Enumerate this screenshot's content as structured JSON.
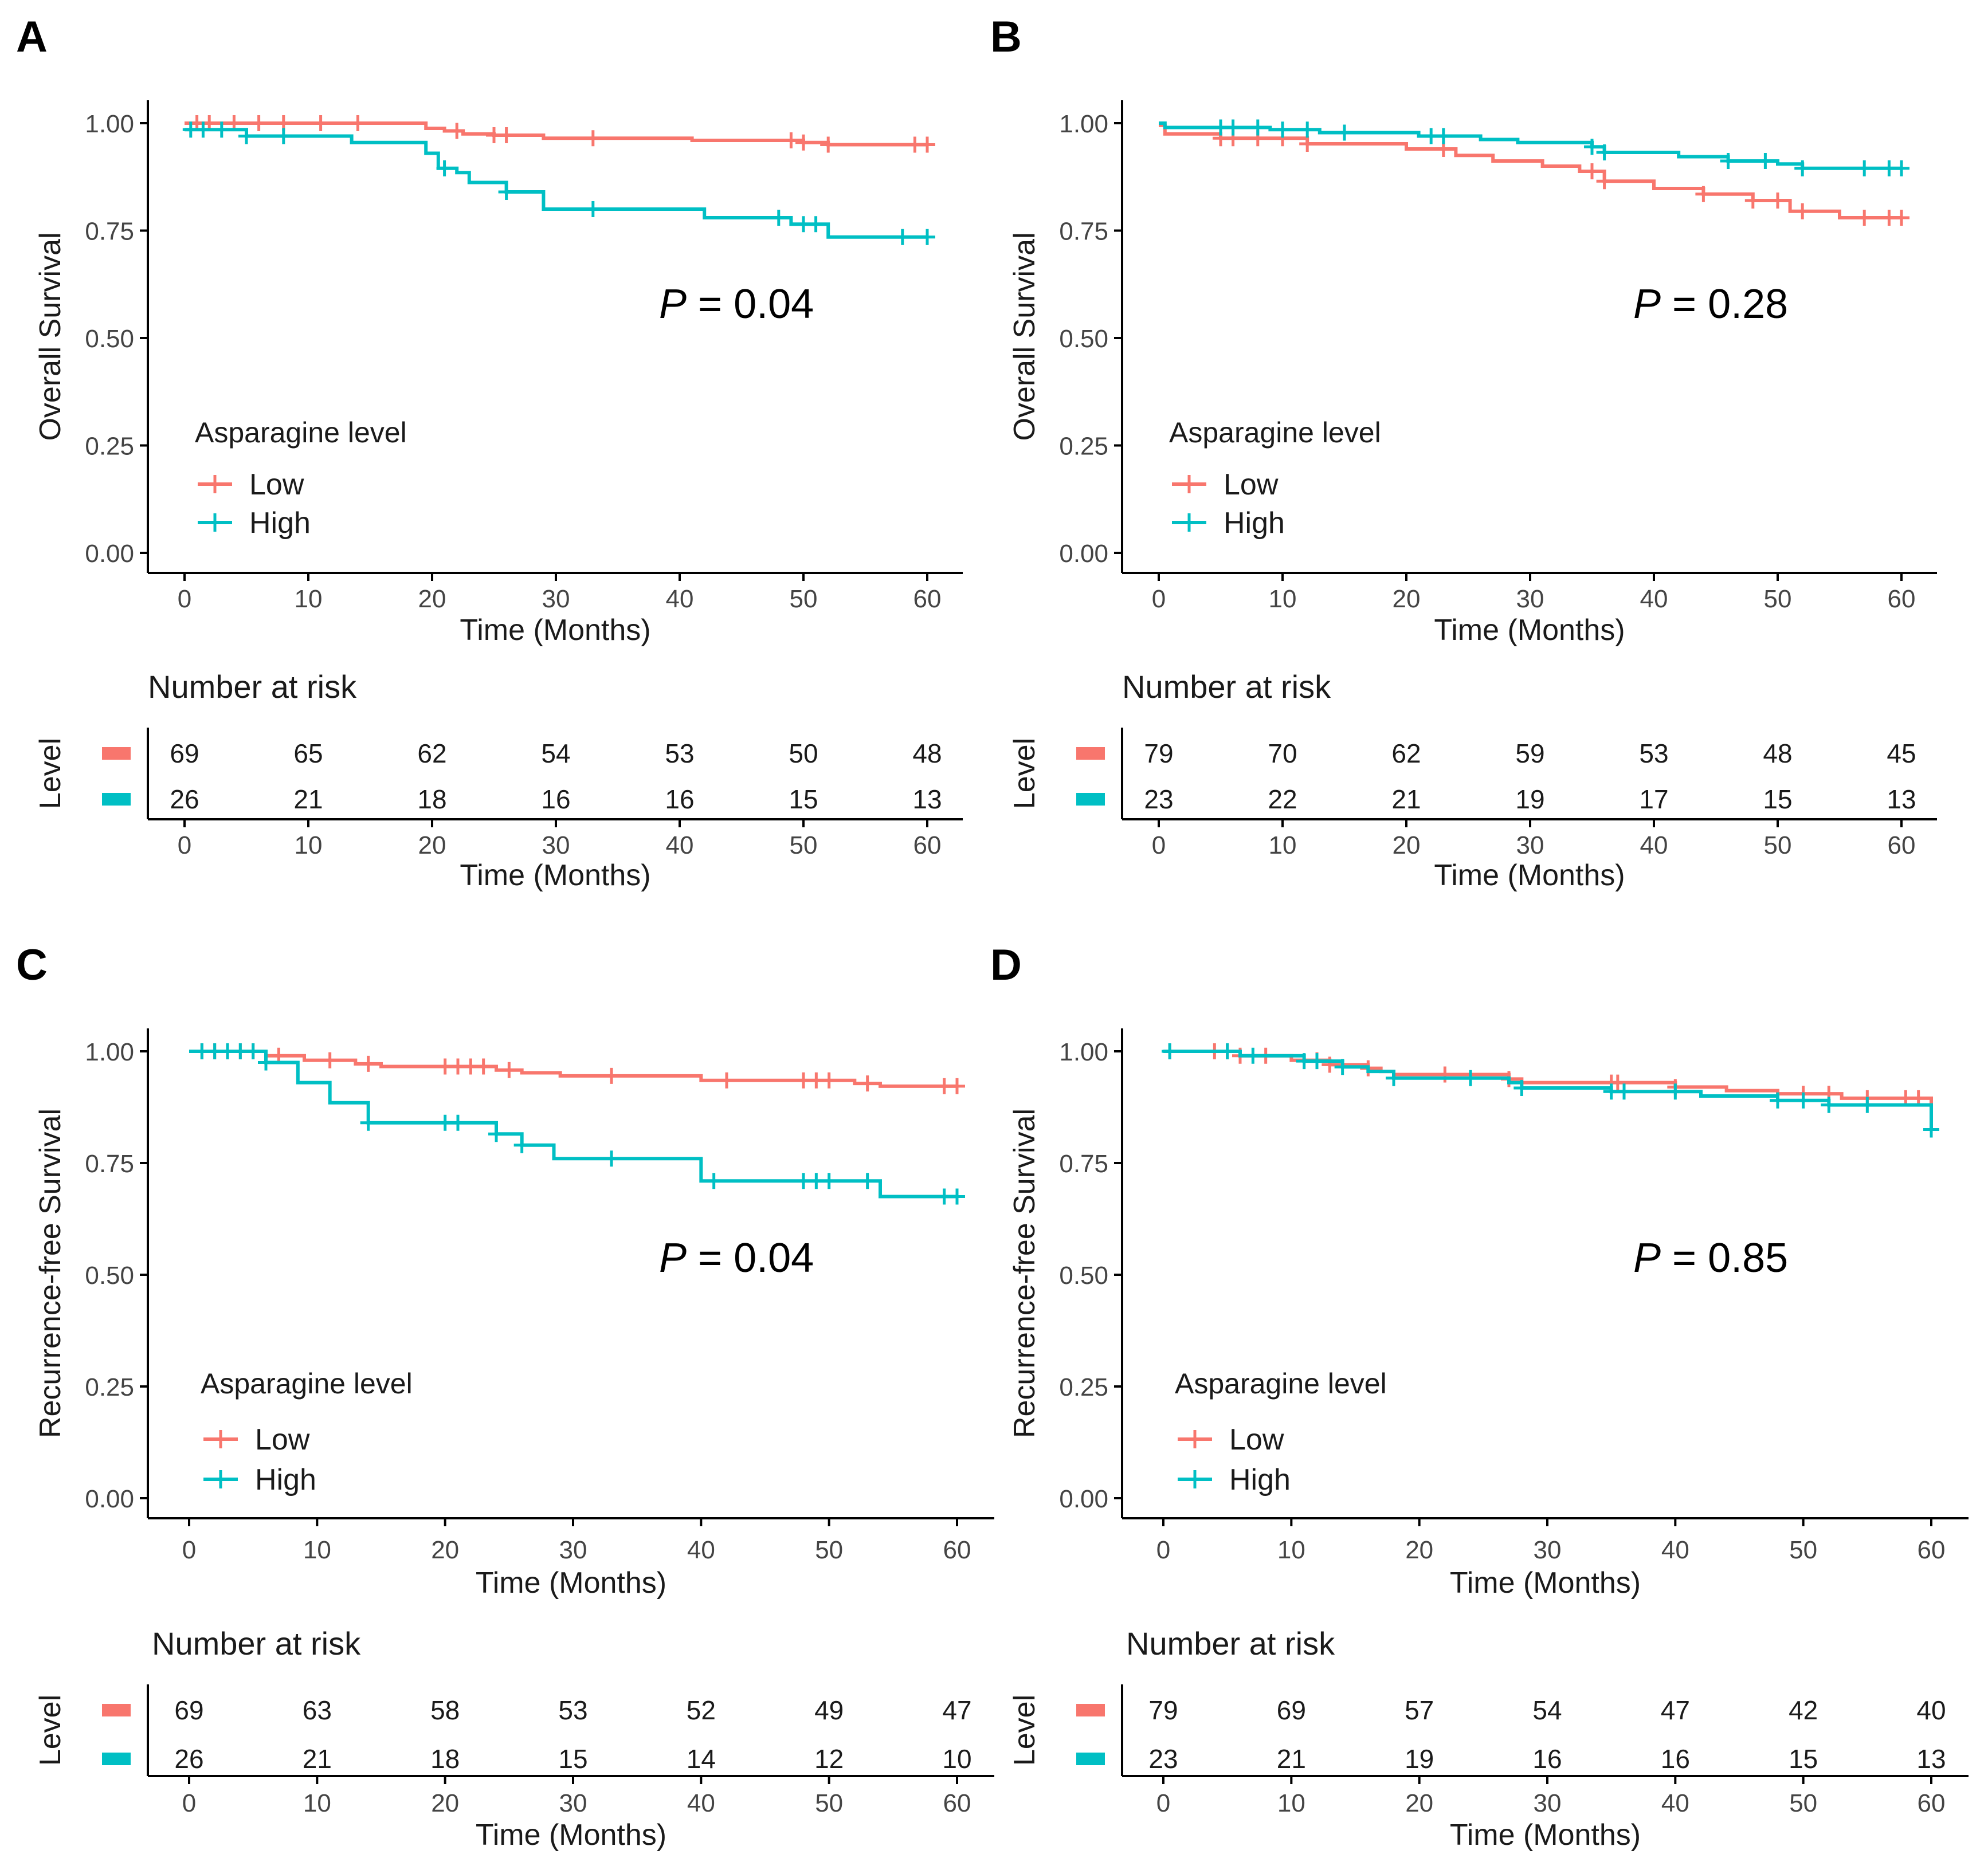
{
  "colors": {
    "low": "#F8766D",
    "high": "#00BFC4",
    "axis": "#000000",
    "text": "#1a1a1a"
  },
  "panels": [
    {
      "letter": "A",
      "chart_data": {
        "type": "line",
        "subtype": "kaplan-meier step",
        "ylabel": "Overall Survival",
        "xlabel": "Time (Months)",
        "xlim": [
          0,
          60
        ],
        "ylim": [
          0,
          1
        ],
        "x_ticks": [
          0,
          10,
          20,
          30,
          40,
          50,
          60
        ],
        "y_ticks": [
          "0.00",
          "0.25",
          "0.50",
          "0.75",
          "1.00"
        ],
        "p_value": "0.04",
        "legend_title": "Asparagine level",
        "series": [
          {
            "name": "Low",
            "color": "#F8766D",
            "steps": [
              [
                0,
                1.0
              ],
              [
                19.5,
                0.988
              ],
              [
                21,
                0.982
              ],
              [
                22.5,
                0.975
              ],
              [
                25,
                0.972
              ],
              [
                29,
                0.965
              ],
              [
                41,
                0.96
              ],
              [
                50,
                0.955
              ],
              [
                52,
                0.95
              ],
              [
                60,
                0.95
              ]
            ],
            "censors": [
              1,
              2,
              4,
              6,
              8,
              11,
              14,
              22,
              25,
              26,
              33,
              49,
              50,
              52,
              59,
              60
            ]
          },
          {
            "name": "High",
            "color": "#00BFC4",
            "steps": [
              [
                0,
                0.985
              ],
              [
                5,
                0.97
              ],
              [
                13.5,
                0.955
              ],
              [
                19.5,
                0.93
              ],
              [
                20.5,
                0.895
              ],
              [
                22,
                0.885
              ],
              [
                23,
                0.862
              ],
              [
                26,
                0.84
              ],
              [
                29,
                0.8
              ],
              [
                42,
                0.78
              ],
              [
                49,
                0.765
              ],
              [
                52,
                0.735
              ],
              [
                60,
                0.735
              ]
            ],
            "censors": [
              0.5,
              1.5,
              3,
              5,
              8,
              21,
              26,
              33,
              48,
              50,
              51,
              58,
              60
            ]
          }
        ],
        "risk_table": {
          "title": "Number at risk",
          "ylabel": "Level",
          "xlabel": "Time (Months)",
          "times": [
            0,
            10,
            20,
            30,
            40,
            50,
            60
          ],
          "low": [
            "69",
            "65",
            "62",
            "54",
            "53",
            "50",
            "48"
          ],
          "high": [
            "26",
            "21",
            "18",
            "16",
            "16",
            "15",
            "13"
          ]
        }
      }
    },
    {
      "letter": "B",
      "chart_data": {
        "type": "line",
        "subtype": "kaplan-meier step",
        "ylabel": "Overall Survival",
        "xlabel": "Time (Months)",
        "xlim": [
          0,
          60
        ],
        "ylim": [
          0,
          1
        ],
        "x_ticks": [
          0,
          10,
          20,
          30,
          40,
          50,
          60
        ],
        "y_ticks": [
          "0.00",
          "0.25",
          "0.50",
          "0.75",
          "1.00"
        ],
        "p_value": "0.28",
        "legend_title": "Asparagine level",
        "series": [
          {
            "name": "Low",
            "color": "#F8766D",
            "steps": [
              [
                0,
                0.995
              ],
              [
                0.5,
                0.975
              ],
              [
                5,
                0.965
              ],
              [
                12,
                0.952
              ],
              [
                20,
                0.94
              ],
              [
                24,
                0.925
              ],
              [
                27,
                0.912
              ],
              [
                31,
                0.9
              ],
              [
                34,
                0.888
              ],
              [
                36,
                0.865
              ],
              [
                40,
                0.848
              ],
              [
                44,
                0.835
              ],
              [
                48,
                0.82
              ],
              [
                51,
                0.795
              ],
              [
                55,
                0.78
              ],
              [
                60,
                0.78
              ]
            ],
            "censors": [
              5,
              6,
              8,
              10,
              12,
              23,
              35,
              36,
              44,
              48,
              50,
              52,
              57,
              59,
              60
            ]
          },
          {
            "name": "High",
            "color": "#00BFC4",
            "steps": [
              [
                0,
                1.0
              ],
              [
                0.5,
                0.99
              ],
              [
                9,
                0.985
              ],
              [
                13,
                0.978
              ],
              [
                21,
                0.97
              ],
              [
                26,
                0.962
              ],
              [
                29,
                0.955
              ],
              [
                35,
                0.945
              ],
              [
                36,
                0.932
              ],
              [
                42,
                0.922
              ],
              [
                46,
                0.912
              ],
              [
                50,
                0.905
              ],
              [
                52,
                0.895
              ],
              [
                60,
                0.895
              ]
            ],
            "censors": [
              5,
              6,
              8,
              10,
              12,
              15,
              22,
              23,
              35,
              36,
              46,
              49,
              52,
              57,
              59,
              60
            ]
          }
        ],
        "risk_table": {
          "title": "Number at risk",
          "ylabel": "Level",
          "xlabel": "Time (Months)",
          "times": [
            0,
            10,
            20,
            30,
            40,
            50,
            60
          ],
          "low": [
            "79",
            "70",
            "62",
            "59",
            "53",
            "48",
            "45"
          ],
          "high": [
            "23",
            "22",
            "21",
            "19",
            "17",
            "15",
            "13"
          ]
        }
      }
    },
    {
      "letter": "C",
      "chart_data": {
        "type": "line",
        "subtype": "kaplan-meier step",
        "ylabel": "Recurrence-free Survival",
        "xlabel": "Time (Months)",
        "xlim": [
          0,
          60
        ],
        "ylim": [
          0,
          1
        ],
        "x_ticks": [
          0,
          10,
          20,
          30,
          40,
          50,
          60
        ],
        "y_ticks": [
          "0.00",
          "0.25",
          "0.50",
          "0.75",
          "1.00"
        ],
        "p_value": "0.04",
        "legend_title": "Asparagine level",
        "series": [
          {
            "name": "Low",
            "color": "#F8766D",
            "steps": [
              [
                0,
                1.0
              ],
              [
                6,
                0.99
              ],
              [
                9,
                0.98
              ],
              [
                13,
                0.972
              ],
              [
                15,
                0.966
              ],
              [
                24,
                0.958
              ],
              [
                26,
                0.952
              ],
              [
                29,
                0.945
              ],
              [
                40,
                0.935
              ],
              [
                52,
                0.928
              ],
              [
                54,
                0.922
              ],
              [
                60,
                0.922
              ]
            ],
            "censors": [
              1,
              2,
              3,
              4,
              5,
              7,
              11,
              14,
              20,
              21,
              22,
              23,
              25,
              33,
              42,
              48,
              49,
              50,
              53,
              59,
              60
            ]
          },
          {
            "name": "High",
            "color": "#00BFC4",
            "steps": [
              [
                0,
                1.0
              ],
              [
                6,
                0.975
              ],
              [
                8.5,
                0.93
              ],
              [
                11,
                0.885
              ],
              [
                14,
                0.84
              ],
              [
                24,
                0.815
              ],
              [
                26,
                0.79
              ],
              [
                28.5,
                0.76
              ],
              [
                40,
                0.71
              ],
              [
                54,
                0.675
              ],
              [
                60,
                0.675
              ]
            ],
            "censors": [
              1,
              2,
              3,
              4,
              5,
              6,
              14,
              20,
              21,
              24,
              26,
              33,
              41,
              48,
              49,
              50,
              53,
              59,
              60
            ]
          }
        ],
        "risk_table": {
          "title": "Number at risk",
          "ylabel": "Level",
          "xlabel": "Time (Months)",
          "times": [
            0,
            10,
            20,
            30,
            40,
            50,
            60
          ],
          "low": [
            "69",
            "63",
            "58",
            "53",
            "52",
            "49",
            "47"
          ],
          "high": [
            "26",
            "21",
            "18",
            "15",
            "14",
            "12",
            "10"
          ]
        }
      }
    },
    {
      "letter": "D",
      "chart_data": {
        "type": "line",
        "subtype": "kaplan-meier step",
        "ylabel": "Recurrence-free Survival",
        "xlabel": "Time (Months)",
        "xlim": [
          0,
          60
        ],
        "ylim": [
          0,
          1
        ],
        "x_ticks": [
          0,
          10,
          20,
          30,
          40,
          50,
          60
        ],
        "y_ticks": [
          "0.00",
          "0.25",
          "0.50",
          "0.75",
          "1.00"
        ],
        "p_value": "0.85",
        "legend_title": "Asparagine level",
        "series": [
          {
            "name": "Low",
            "color": "#F8766D",
            "steps": [
              [
                0,
                1.0
              ],
              [
                6,
                0.99
              ],
              [
                10,
                0.98
              ],
              [
                13,
                0.97
              ],
              [
                16,
                0.962
              ],
              [
                17,
                0.955
              ],
              [
                18,
                0.948
              ],
              [
                27,
                0.938
              ],
              [
                28,
                0.93
              ],
              [
                40,
                0.92
              ],
              [
                44,
                0.912
              ],
              [
                48,
                0.905
              ],
              [
                53,
                0.895
              ],
              [
                60,
                0.888
              ],
              [
                60,
                0.845
              ]
            ],
            "censors": [
              0.5,
              4,
              5,
              6,
              8,
              12,
              13,
              16,
              22,
              27,
              35,
              35.5,
              40,
              50,
              52,
              55,
              58,
              59
            ]
          },
          {
            "name": "High",
            "color": "#00BFC4",
            "steps": [
              [
                0,
                1.0
              ],
              [
                6,
                0.99
              ],
              [
                11,
                0.978
              ],
              [
                14,
                0.965
              ],
              [
                16,
                0.955
              ],
              [
                18,
                0.94
              ],
              [
                27,
                0.93
              ],
              [
                28,
                0.918
              ],
              [
                35,
                0.91
              ],
              [
                42,
                0.9
              ],
              [
                48,
                0.89
              ],
              [
                52,
                0.88
              ],
              [
                60,
                0.87
              ],
              [
                60,
                0.825
              ]
            ],
            "censors": [
              0.5,
              5,
              7,
              11,
              12,
              14,
              18,
              24,
              28,
              35,
              36,
              40,
              48,
              50,
              52,
              55,
              60
            ]
          }
        ],
        "risk_table": {
          "title": "Number at risk",
          "ylabel": "Level",
          "xlabel": "Time (Months)",
          "times": [
            0,
            10,
            20,
            30,
            40,
            50,
            60
          ],
          "low": [
            "79",
            "69",
            "57",
            "54",
            "47",
            "42",
            "40"
          ],
          "high": [
            "23",
            "21",
            "19",
            "16",
            "16",
            "15",
            "13"
          ]
        }
      }
    }
  ]
}
